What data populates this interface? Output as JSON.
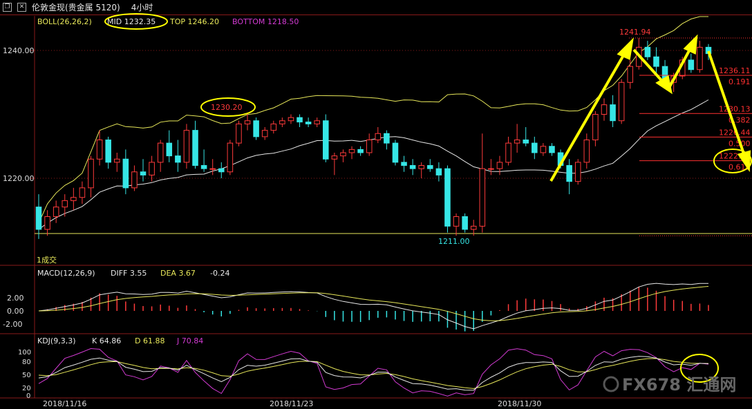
{
  "window": {
    "symbol": "伦敦金现(贵金属 5120)",
    "period": "4小时"
  },
  "price_panel": {
    "indicator": "BOLL(26,26,2)",
    "mid_label": "MID 1232.35",
    "top_label": "TOP 1246.20",
    "bottom_label": "BOTTOM 1218.50",
    "y_ticks": [
      "1240.00",
      "1220.00"
    ],
    "price_annotations": {
      "high": "1241.94",
      "left_peak": "1230.20",
      "low": "1211.00"
    },
    "fib_labels": [
      {
        "price": "1236.11",
        "ratio": "0.191"
      },
      {
        "price": "1230.13",
        "ratio": "0.382"
      },
      {
        "price": "1226.44",
        "ratio": "0.500"
      },
      {
        "price": "1222.75",
        "ratio": "0.618"
      }
    ],
    "volume_label": "1成交"
  },
  "macd_panel": {
    "indicator": "MACD(12,26,9)",
    "diff_label": "DIFF 3.55",
    "dea_label": "DEA 3.67",
    "macd_value": "-0.24",
    "y_ticks": [
      "2.00",
      "0.00",
      "-2.00"
    ]
  },
  "kdj_panel": {
    "indicator": "KDJ(9,3,3)",
    "k_label": "K 64.86",
    "d_label": "D 61.88",
    "j_label": "J 70.84",
    "y_ticks": [
      "100",
      "80",
      "50",
      "20",
      "0"
    ]
  },
  "x_axis": {
    "dates": [
      "2018/11/16",
      "2018/11/23",
      "2018/11/30"
    ]
  },
  "watermark": "FX678 汇通网",
  "colors": {
    "up": "#ff3b3b",
    "down": "#36e6e6",
    "mid": "#e8e8e8",
    "top": "#e8e85a",
    "bottom": "#d43bd4",
    "annotation": "#ffff00",
    "fib": "#ff3030"
  },
  "chart_data": {
    "type": "candlestick",
    "instrument": "London Gold Spot",
    "timeframe": "4h",
    "ylim": [
      1209,
      1247
    ],
    "candles": [
      [
        1215.5,
        1217.5,
        1210.5,
        1212.0
      ],
      [
        1212.0,
        1215.0,
        1211.0,
        1214.0
      ],
      [
        1214.0,
        1216.5,
        1213.0,
        1215.5
      ],
      [
        1215.5,
        1217.5,
        1214.0,
        1216.5
      ],
      [
        1216.5,
        1218.5,
        1215.0,
        1217.0
      ],
      [
        1217.0,
        1219.5,
        1216.0,
        1218.5
      ],
      [
        1218.5,
        1223.5,
        1217.0,
        1223.0
      ],
      [
        1223.0,
        1227.5,
        1222.0,
        1226.0
      ],
      [
        1226.0,
        1226.5,
        1221.5,
        1222.5
      ],
      [
        1222.5,
        1224.0,
        1221.0,
        1223.0
      ],
      [
        1223.0,
        1224.5,
        1217.5,
        1218.5
      ],
      [
        1218.5,
        1222.0,
        1218.0,
        1221.0
      ],
      [
        1221.0,
        1223.0,
        1219.5,
        1220.5
      ],
      [
        1220.5,
        1223.5,
        1219.5,
        1222.5
      ],
      [
        1222.5,
        1226.0,
        1221.0,
        1225.5
      ],
      [
        1225.5,
        1227.5,
        1222.5,
        1223.5
      ],
      [
        1223.5,
        1226.0,
        1221.0,
        1222.5
      ],
      [
        1222.5,
        1228.5,
        1221.5,
        1227.5
      ],
      [
        1227.5,
        1229.0,
        1221.5,
        1222.0
      ],
      [
        1222.0,
        1224.5,
        1221.0,
        1221.5
      ],
      [
        1221.5,
        1223.0,
        1220.5,
        1221.5
      ],
      [
        1221.5,
        1222.5,
        1220.0,
        1221.0
      ],
      [
        1221.0,
        1226.0,
        1220.5,
        1225.5
      ],
      [
        1225.5,
        1229.0,
        1225.0,
        1228.5
      ],
      [
        1228.5,
        1230.2,
        1227.5,
        1229.0
      ],
      [
        1229.0,
        1229.5,
        1226.0,
        1226.5
      ],
      [
        1226.5,
        1228.0,
        1226.0,
        1227.5
      ],
      [
        1227.5,
        1229.0,
        1227.0,
        1228.5
      ],
      [
        1228.5,
        1229.5,
        1228.0,
        1229.0
      ],
      [
        1229.0,
        1230.0,
        1228.5,
        1229.5
      ],
      [
        1229.5,
        1230.0,
        1228.0,
        1228.8
      ],
      [
        1228.8,
        1229.5,
        1228.0,
        1228.5
      ],
      [
        1228.5,
        1229.5,
        1228.0,
        1229.0
      ],
      [
        1229.0,
        1230.0,
        1222.5,
        1223.0
      ],
      [
        1223.0,
        1224.0,
        1220.5,
        1223.5
      ],
      [
        1223.5,
        1224.5,
        1222.5,
        1224.0
      ],
      [
        1224.0,
        1225.0,
        1223.0,
        1224.5
      ],
      [
        1224.5,
        1225.0,
        1223.5,
        1224.0
      ],
      [
        1224.0,
        1227.0,
        1223.5,
        1226.0
      ],
      [
        1226.0,
        1228.0,
        1225.5,
        1227.0
      ],
      [
        1227.0,
        1227.5,
        1224.5,
        1225.5
      ],
      [
        1225.5,
        1226.0,
        1222.0,
        1222.5
      ],
      [
        1222.5,
        1223.5,
        1221.0,
        1222.0
      ],
      [
        1222.0,
        1223.0,
        1220.5,
        1221.5
      ],
      [
        1221.5,
        1222.5,
        1220.0,
        1222.0
      ],
      [
        1222.0,
        1223.0,
        1221.0,
        1221.5
      ],
      [
        1221.5,
        1222.5,
        1219.5,
        1220.5
      ],
      [
        1221.5,
        1222.0,
        1211.5,
        1212.5
      ],
      [
        1212.5,
        1214.5,
        1211.0,
        1214.0
      ],
      [
        1214.0,
        1214.5,
        1211.5,
        1212.0
      ],
      [
        1212.0,
        1213.5,
        1211.0,
        1212.5
      ],
      [
        1212.5,
        1227.0,
        1211.5,
        1221.5
      ],
      [
        1221.5,
        1223.0,
        1220.5,
        1221.5
      ],
      [
        1221.5,
        1223.5,
        1220.5,
        1222.5
      ],
      [
        1222.5,
        1226.5,
        1222.0,
        1225.5
      ],
      [
        1225.5,
        1228.5,
        1224.0,
        1226.0
      ],
      [
        1226.0,
        1228.0,
        1225.0,
        1225.5
      ],
      [
        1225.5,
        1226.5,
        1223.0,
        1224.0
      ],
      [
        1224.0,
        1225.5,
        1223.5,
        1225.0
      ],
      [
        1225.0,
        1225.5,
        1223.5,
        1224.0
      ],
      [
        1224.0,
        1224.5,
        1221.5,
        1222.0
      ],
      [
        1222.0,
        1223.0,
        1217.5,
        1219.5
      ],
      [
        1219.5,
        1223.0,
        1219.0,
        1222.5
      ],
      [
        1222.5,
        1227.0,
        1221.5,
        1226.0
      ],
      [
        1226.0,
        1230.5,
        1225.0,
        1230.0
      ],
      [
        1230.0,
        1232.5,
        1229.0,
        1231.5
      ],
      [
        1231.5,
        1233.0,
        1228.0,
        1229.0
      ],
      [
        1229.0,
        1235.5,
        1228.5,
        1235.0
      ],
      [
        1235.0,
        1238.5,
        1234.0,
        1237.5
      ],
      [
        1237.5,
        1241.94,
        1237.0,
        1240.5
      ],
      [
        1240.5,
        1241.5,
        1238.5,
        1239.0
      ],
      [
        1239.0,
        1240.5,
        1236.5,
        1237.5
      ],
      [
        1237.5,
        1238.5,
        1234.5,
        1235.0
      ],
      [
        1235.0,
        1236.5,
        1233.5,
        1236.0
      ],
      [
        1236.0,
        1239.0,
        1235.5,
        1238.5
      ],
      [
        1238.5,
        1239.5,
        1236.5,
        1237.0
      ],
      [
        1237.0,
        1241.5,
        1236.5,
        1240.5
      ],
      [
        1240.5,
        1241.0,
        1238.5,
        1239.5
      ]
    ],
    "bollinger": {
      "mid_last": 1232.35,
      "top_last": 1246.2,
      "bottom_last": 1218.5
    },
    "annotated_prices": {
      "high": 1241.94,
      "left_peak": 1230.2,
      "low": 1211.0
    },
    "fibonacci_retracement": [
      {
        "ratio": 0.191,
        "price": 1236.11
      },
      {
        "ratio": 0.382,
        "price": 1230.13
      },
      {
        "ratio": 0.5,
        "price": 1226.44
      },
      {
        "ratio": 0.618,
        "price": 1222.75
      }
    ],
    "macd": {
      "diff": 3.55,
      "dea": 3.67,
      "macd": -0.24,
      "ylim": [
        -3,
        4
      ]
    },
    "kdj": {
      "k": 64.86,
      "d": 61.88,
      "j": 70.84,
      "ylim": [
        0,
        110
      ]
    },
    "x_tick_labels": [
      "2018/11/16",
      "2018/11/23",
      "2018/11/30"
    ]
  }
}
